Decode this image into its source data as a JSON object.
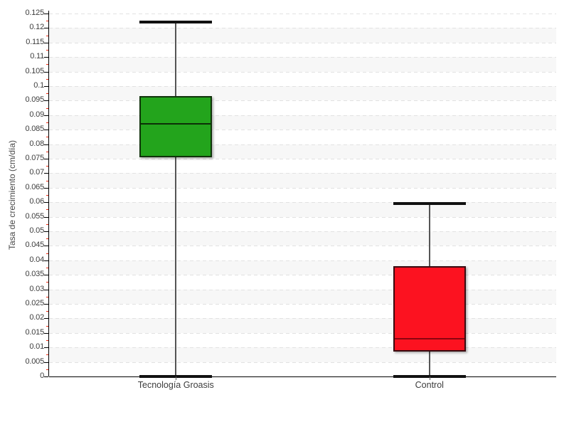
{
  "chart_data": {
    "type": "boxplot",
    "title": "",
    "xlabel": "",
    "ylabel": "Tasa de crecimiento (cm/día)",
    "ylim": [
      0,
      0.125
    ],
    "y_tick_interval": 0.005,
    "y_minor_tick_interval": 0.0025,
    "y_tick_labels": [
      "0",
      "0.005",
      "0.01",
      "0.015",
      "0.02",
      "0.025",
      "0.03",
      "0.035",
      "0.04",
      "0.045",
      "0.05",
      "0.055",
      "0.06",
      "0.065",
      "0.07",
      "0.075",
      "0.08",
      "0.085",
      "0.09",
      "0.095",
      "0.1",
      "0.105",
      "0.11",
      "0.115",
      "0.12",
      "0.125"
    ],
    "categories": [
      "Tecnología Groasis",
      "Control"
    ],
    "series": [
      {
        "name": "Tecnología Groasis",
        "fill": "#23a41c",
        "edge": "#10330b",
        "median_color": "#0c2f07",
        "values": {
          "min": 0,
          "q1": 0.0755,
          "median": 0.087,
          "q3": 0.0965,
          "max": 0.122
        }
      },
      {
        "name": "Control",
        "fill": "#fc1220",
        "edge": "#380b10",
        "median_color": "#8c0410",
        "values": {
          "min": 0,
          "q1": 0.0085,
          "median": 0.013,
          "q3": 0.038,
          "max": 0.0595
        }
      }
    ],
    "grid": {
      "dashed_gridlines": true,
      "gridline_color": "#e2e2e2",
      "band_color_even": "#ffffff",
      "band_color_odd": "#f7f7f7"
    },
    "style": {
      "axis_color": "#000000",
      "major_tick_color": "#000000",
      "minor_tick_color": "#f22c13",
      "whisker_color": "#555555",
      "cap_color": "#111111",
      "label_color": "#3d3d3d"
    },
    "legend": {
      "visible": false
    }
  }
}
